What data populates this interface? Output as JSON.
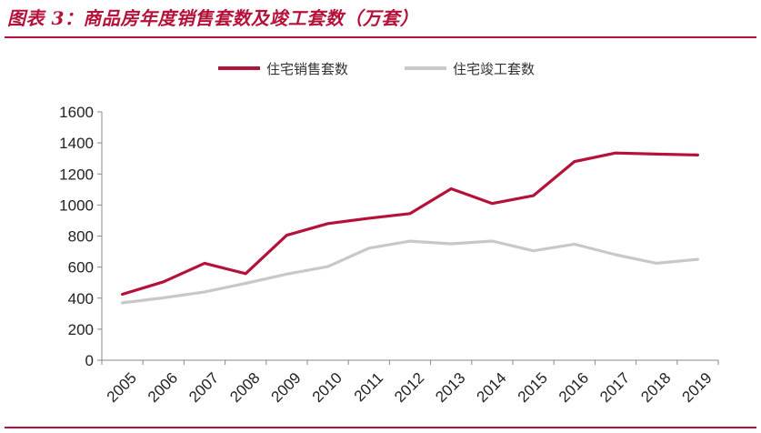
{
  "header": {
    "title": "图表 3：商品房年度销售套数及竣工套数（万套）"
  },
  "chart_data": {
    "type": "line",
    "categories": [
      "2005",
      "2006",
      "2007",
      "2008",
      "2009",
      "2010",
      "2011",
      "2012",
      "2013",
      "2014",
      "2015",
      "2016",
      "2017",
      "2018",
      "2019"
    ],
    "series": [
      {
        "name": "住宅销售套数",
        "color": "#b5123a",
        "values": [
          425,
          505,
          625,
          558,
          805,
          880,
          915,
          945,
          1105,
          1010,
          1060,
          1280,
          1335,
          1328,
          1322
        ]
      },
      {
        "name": "住宅竣工套数",
        "color": "#c8c8c8",
        "values": [
          370,
          402,
          440,
          495,
          555,
          603,
          722,
          767,
          750,
          768,
          705,
          748,
          680,
          625,
          650
        ]
      }
    ],
    "ylim": [
      0,
      1600
    ],
    "yticks": [
      0,
      200,
      400,
      600,
      800,
      1000,
      1200,
      1400,
      1600
    ],
    "legend_position": "top-center",
    "grid": false
  }
}
